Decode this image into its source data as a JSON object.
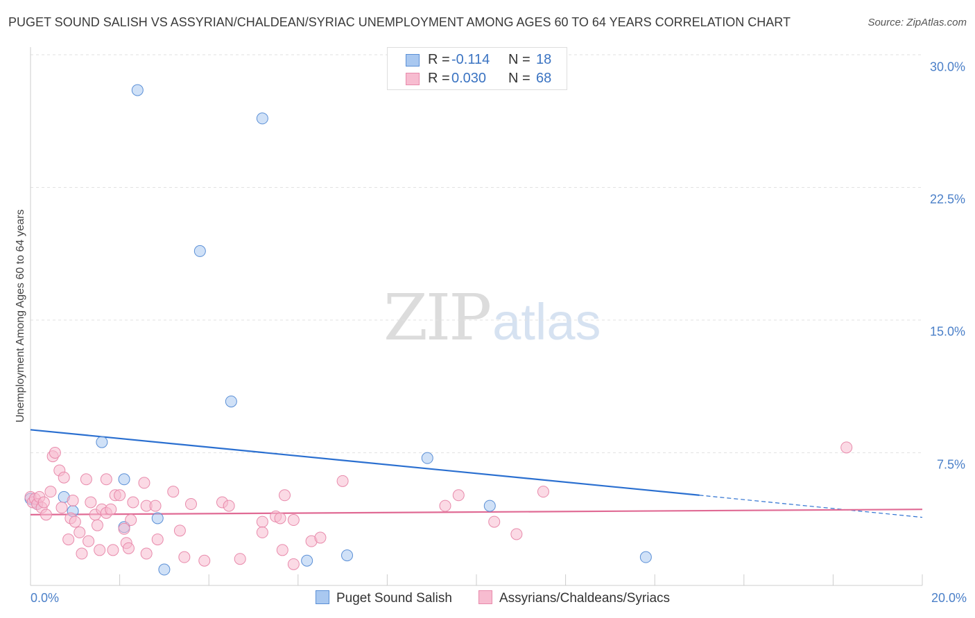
{
  "chart_data": {
    "type": "scatter",
    "title": "PUGET SOUND SALISH VS ASSYRIAN/CHALDEAN/SYRIAC UNEMPLOYMENT AMONG AGES 60 TO 64 YEARS CORRELATION CHART",
    "source": "Source: ZipAtlas.com",
    "xlabel": "",
    "ylabel": "Unemployment Among Ages 60 to 64 years",
    "xlim": [
      0,
      20
    ],
    "ylim": [
      0,
      30
    ],
    "x_tick_labels": [
      "0.0%",
      "20.0%"
    ],
    "y_ticks": [
      7.5,
      15.0,
      22.5,
      30.0
    ],
    "y_tick_labels": [
      "7.5%",
      "15.0%",
      "22.5%",
      "30.0%"
    ],
    "grid": true,
    "watermark": {
      "zip": "ZIP",
      "atlas": "atlas"
    },
    "legend": {
      "position": "top-center",
      "rows": [
        {
          "r_label": "R = ",
          "r_value": "-0.114",
          "n_label": "N = ",
          "n_value": "18"
        },
        {
          "r_label": "R = ",
          "r_value": "0.030",
          "n_label": "N = ",
          "n_value": "68"
        }
      ]
    },
    "series": [
      {
        "name": "Puget Sound Salish",
        "color": "#a9c8f0",
        "stroke": "#5a8fd6",
        "trend_color": "#2a6fd0",
        "trend": {
          "x0": 0,
          "y0": 8.8,
          "x1": 15.0,
          "y1": 5.1,
          "dash_to_x": 20.0,
          "dash_to_y": 3.85
        },
        "points": [
          [
            0.0,
            4.9
          ],
          [
            0.75,
            5.0
          ],
          [
            0.95,
            4.2
          ],
          [
            1.6,
            8.1
          ],
          [
            2.1,
            3.3
          ],
          [
            2.1,
            6.0
          ],
          [
            2.4,
            28.0
          ],
          [
            2.85,
            3.8
          ],
          [
            3.0,
            0.9
          ],
          [
            3.8,
            18.9
          ],
          [
            4.5,
            10.4
          ],
          [
            5.2,
            26.4
          ],
          [
            6.2,
            1.4
          ],
          [
            7.1,
            1.7
          ],
          [
            8.9,
            7.2
          ],
          [
            10.3,
            4.5
          ],
          [
            13.8,
            1.6
          ],
          [
            0.15,
            4.6
          ]
        ]
      },
      {
        "name": "Assyrians/Chaldeans/Syriacs",
        "color": "#f7bcd0",
        "stroke": "#e88aab",
        "trend_color": "#e06a94",
        "trend": {
          "x0": 0,
          "y0": 4.0,
          "x1": 20.0,
          "y1": 4.3
        },
        "points": [
          [
            0.0,
            5.0
          ],
          [
            0.05,
            4.7
          ],
          [
            0.1,
            4.9
          ],
          [
            0.15,
            4.6
          ],
          [
            0.2,
            5.0
          ],
          [
            0.25,
            4.4
          ],
          [
            0.35,
            4.0
          ],
          [
            0.45,
            5.3
          ],
          [
            0.5,
            7.3
          ],
          [
            0.55,
            7.5
          ],
          [
            0.65,
            6.5
          ],
          [
            0.7,
            4.4
          ],
          [
            0.75,
            6.1
          ],
          [
            0.85,
            2.6
          ],
          [
            0.9,
            3.8
          ],
          [
            0.95,
            4.8
          ],
          [
            1.0,
            3.6
          ],
          [
            1.1,
            3.0
          ],
          [
            1.15,
            1.8
          ],
          [
            1.25,
            6.0
          ],
          [
            1.3,
            2.5
          ],
          [
            1.35,
            4.7
          ],
          [
            1.45,
            4.0
          ],
          [
            1.5,
            3.4
          ],
          [
            1.55,
            2.0
          ],
          [
            1.6,
            4.3
          ],
          [
            1.7,
            4.1
          ],
          [
            1.7,
            6.0
          ],
          [
            1.8,
            4.3
          ],
          [
            1.85,
            2.0
          ],
          [
            1.9,
            5.1
          ],
          [
            2.0,
            5.1
          ],
          [
            2.1,
            3.2
          ],
          [
            2.15,
            2.4
          ],
          [
            2.2,
            2.1
          ],
          [
            2.25,
            3.7
          ],
          [
            2.3,
            4.7
          ],
          [
            2.55,
            5.8
          ],
          [
            2.6,
            4.5
          ],
          [
            2.6,
            1.8
          ],
          [
            2.8,
            4.5
          ],
          [
            2.85,
            2.6
          ],
          [
            3.2,
            5.3
          ],
          [
            3.35,
            3.1
          ],
          [
            3.45,
            1.6
          ],
          [
            3.6,
            4.6
          ],
          [
            3.9,
            1.4
          ],
          [
            4.3,
            4.7
          ],
          [
            4.45,
            4.5
          ],
          [
            4.7,
            1.5
          ],
          [
            5.2,
            3.6
          ],
          [
            5.2,
            3.0
          ],
          [
            5.5,
            3.9
          ],
          [
            5.6,
            3.8
          ],
          [
            5.65,
            2.0
          ],
          [
            5.7,
            5.1
          ],
          [
            5.9,
            3.7
          ],
          [
            5.9,
            1.2
          ],
          [
            6.3,
            2.5
          ],
          [
            6.5,
            2.7
          ],
          [
            7.0,
            5.9
          ],
          [
            9.3,
            4.5
          ],
          [
            9.6,
            5.1
          ],
          [
            10.4,
            3.6
          ],
          [
            10.9,
            2.9
          ],
          [
            11.5,
            5.3
          ],
          [
            18.3,
            7.8
          ],
          [
            0.3,
            4.7
          ]
        ]
      }
    ]
  }
}
